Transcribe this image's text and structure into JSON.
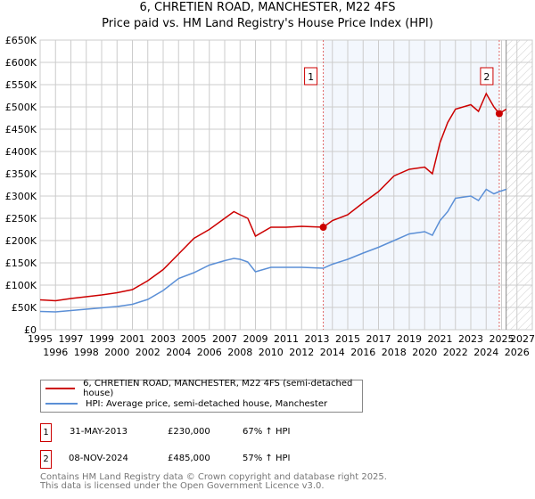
{
  "title": "6, CHRETIEN ROAD, MANCHESTER, M22 4FS",
  "subtitle": "Price paid vs. HM Land Registry's House Price Index (HPI)",
  "chart_data": {
    "type": "line",
    "xlim": [
      1995,
      2027
    ],
    "ylim": [
      0,
      650000
    ],
    "x_ticks": [
      "1995",
      "1996",
      "1997",
      "1998",
      "1999",
      "2000",
      "2001",
      "2002",
      "2003",
      "2004",
      "2005",
      "2006",
      "2007",
      "2008",
      "2009",
      "2010",
      "2011",
      "2012",
      "2013",
      "2014",
      "2015",
      "2016",
      "2017",
      "2018",
      "2019",
      "2020",
      "2021",
      "2022",
      "2023",
      "2024",
      "2025",
      "2026",
      "2027"
    ],
    "y_ticks": [
      {
        "v": 0,
        "l": "£0"
      },
      {
        "v": 50000,
        "l": "£50K"
      },
      {
        "v": 100000,
        "l": "£100K"
      },
      {
        "v": 150000,
        "l": "£150K"
      },
      {
        "v": 200000,
        "l": "£200K"
      },
      {
        "v": 250000,
        "l": "£250K"
      },
      {
        "v": 300000,
        "l": "£300K"
      },
      {
        "v": 350000,
        "l": "£350K"
      },
      {
        "v": 400000,
        "l": "£400K"
      },
      {
        "v": 450000,
        "l": "£450K"
      },
      {
        "v": 500000,
        "l": "£500K"
      },
      {
        "v": 550000,
        "l": "£550K"
      },
      {
        "v": 600000,
        "l": "£600K"
      },
      {
        "v": 650000,
        "l": "£650K"
      }
    ],
    "grid": true,
    "shaded_range": [
      2013.41,
      2024.85
    ],
    "forecast_hatch_from": 2025.3,
    "series": [
      {
        "name": "6, CHRETIEN ROAD, MANCHESTER, M22 4FS (semi-detached house)",
        "color": "#cc0000",
        "x": [
          1995,
          1996,
          1997,
          1998,
          1999,
          2000,
          2001,
          2002,
          2003,
          2004,
          2005,
          2006,
          2007,
          2007.6,
          2008,
          2008.5,
          2009,
          2010,
          2011,
          2012,
          2013.41,
          2014,
          2015,
          2016,
          2017,
          2018,
          2019,
          2020,
          2020.5,
          2021,
          2021.5,
          2022,
          2023,
          2023.5,
          2024,
          2024.5,
          2024.85,
          2025.3
        ],
        "y": [
          67000,
          65000,
          70000,
          74000,
          78000,
          83000,
          90000,
          110000,
          135000,
          170000,
          205000,
          225000,
          250000,
          265000,
          258000,
          250000,
          210000,
          230000,
          230000,
          232000,
          230000,
          245000,
          258000,
          285000,
          310000,
          345000,
          360000,
          365000,
          350000,
          420000,
          465000,
          495000,
          505000,
          490000,
          530000,
          500000,
          485000,
          495000
        ]
      },
      {
        "name": "HPI: Average price, semi-detached house, Manchester",
        "color": "#5b8fd6",
        "x": [
          1995,
          1996,
          1997,
          1998,
          1999,
          2000,
          2001,
          2002,
          2003,
          2004,
          2005,
          2006,
          2007,
          2007.6,
          2008,
          2008.5,
          2009,
          2010,
          2011,
          2012,
          2013.41,
          2014,
          2015,
          2016,
          2017,
          2018,
          2019,
          2020,
          2020.5,
          2021,
          2021.5,
          2022,
          2023,
          2023.5,
          2024,
          2024.5,
          2024.85,
          2025.3
        ],
        "y": [
          41000,
          40000,
          43000,
          46000,
          49000,
          52000,
          57000,
          68000,
          88000,
          115000,
          128000,
          145000,
          155000,
          160000,
          158000,
          152000,
          130000,
          140000,
          140000,
          140000,
          138000,
          147000,
          158000,
          172000,
          185000,
          200000,
          215000,
          220000,
          212000,
          245000,
          265000,
          295000,
          300000,
          290000,
          315000,
          305000,
          310000,
          315000
        ]
      }
    ],
    "sales": [
      {
        "label": "1",
        "x": 2013.41,
        "y": 230000
      },
      {
        "label": "2",
        "x": 2024.85,
        "y": 485000
      }
    ]
  },
  "legend": {
    "red": "6, CHRETIEN ROAD, MANCHESTER, M22 4FS (semi-detached house)",
    "blue": "HPI: Average price, semi-detached house, Manchester"
  },
  "transactions": [
    {
      "n": "1",
      "date": "31-MAY-2013",
      "price": "£230,000",
      "hpi": "67% ↑ HPI"
    },
    {
      "n": "2",
      "date": "08-NOV-2024",
      "price": "£485,000",
      "hpi": "57% ↑ HPI"
    }
  ],
  "footer": [
    "Contains HM Land Registry data © Crown copyright and database right 2025.",
    "This data is licensed under the Open Government Licence v3.0."
  ]
}
